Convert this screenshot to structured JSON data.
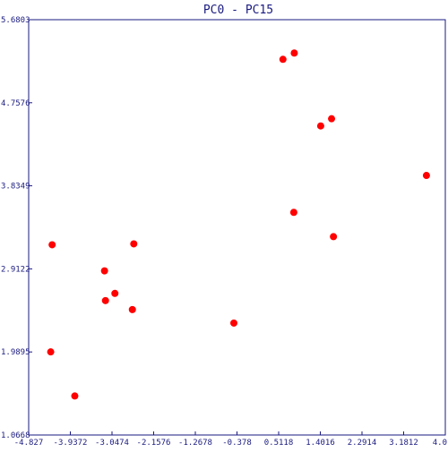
{
  "chart_data": {
    "type": "scatter",
    "title": "PC0 - PC15",
    "xlabel": "",
    "ylabel": "",
    "xlim": [
      -4.827,
      4.0
    ],
    "ylim": [
      1.0668,
      5.6803
    ],
    "x_ticks": [
      "-4.827",
      "-3.9372",
      "-3.0474",
      "-2.1576",
      "-1.2678",
      "-0.378",
      "0.5118",
      "1.4016",
      "2.2914",
      "3.1812",
      "4.0"
    ],
    "y_ticks": [
      "5.6803",
      "4.7576",
      "3.8349",
      "2.9122",
      "1.9895",
      "1.0668"
    ],
    "grid": false,
    "point_color": "#ff0000",
    "axis_color": "#1a1a80",
    "series": [
      {
        "points": [
          {
            "x": -4.33,
            "y": 3.18
          },
          {
            "x": -3.22,
            "y": 2.89
          },
          {
            "x": -2.6,
            "y": 3.19
          },
          {
            "x": -3.0,
            "y": 2.64
          },
          {
            "x": -3.2,
            "y": 2.56
          },
          {
            "x": -2.63,
            "y": 2.46
          },
          {
            "x": -4.36,
            "y": 1.99
          },
          {
            "x": -3.85,
            "y": 1.5
          },
          {
            "x": -0.48,
            "y": 2.31
          },
          {
            "x": 0.56,
            "y": 5.24
          },
          {
            "x": 0.8,
            "y": 5.31
          },
          {
            "x": 1.36,
            "y": 4.5
          },
          {
            "x": 1.59,
            "y": 4.58
          },
          {
            "x": 0.79,
            "y": 3.54
          },
          {
            "x": 1.63,
            "y": 3.27
          },
          {
            "x": 3.6,
            "y": 3.95
          }
        ]
      }
    ]
  }
}
